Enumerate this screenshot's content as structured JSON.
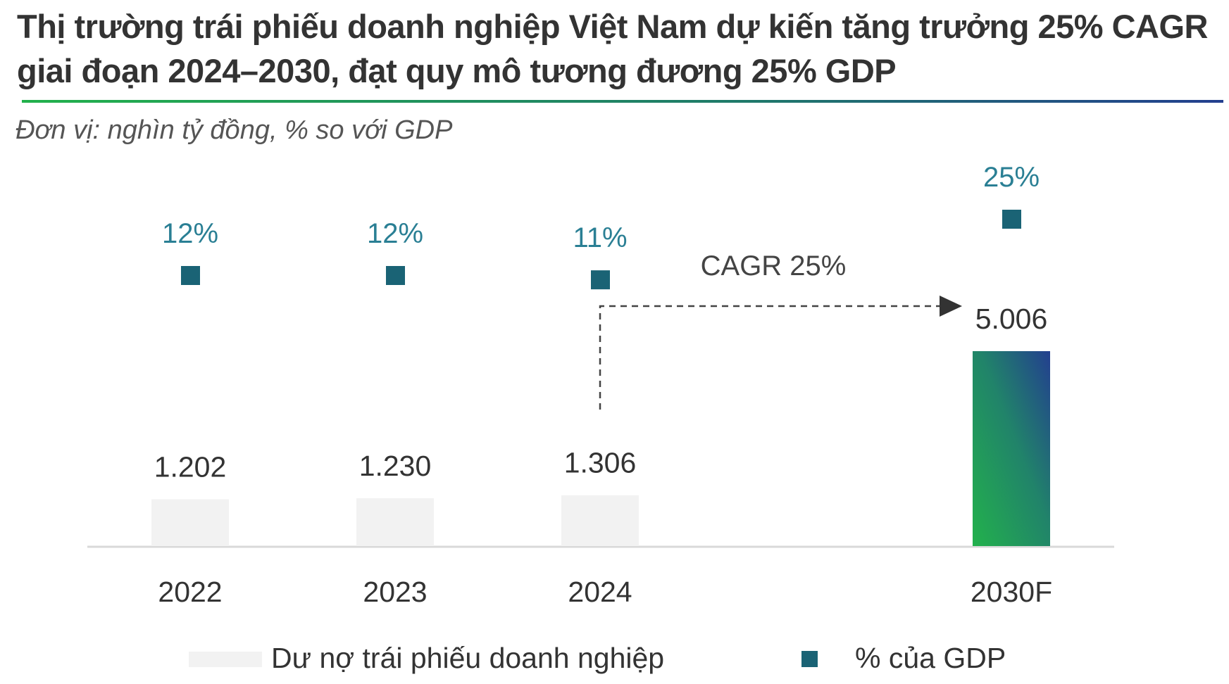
{
  "title": "Thị trường trái phiếu doanh nghiệp Việt Nam dự kiến tăng trưởng 25% CAGR giai đoạn 2024–2030, đạt quy mô tương đương 25% GDP",
  "subtitle": "Đơn vị: nghìn tỷ đồng, % so với GDP",
  "chart_data": {
    "type": "bar",
    "categories": [
      "2022",
      "2023",
      "2024",
      "2030F"
    ],
    "series": [
      {
        "name": "Dư nợ trái phiếu doanh nghiệp",
        "kind": "bar",
        "values": [
          1202,
          1230,
          1306,
          5006
        ],
        "labels": [
          "1.202",
          "1.230",
          "1.306",
          "5.006"
        ],
        "color": "#f2f2f2",
        "highlight_gradient": [
          "#22b14c",
          "#233f8f"
        ]
      },
      {
        "name": "% của GDP",
        "kind": "marker",
        "values": [
          12,
          12,
          11,
          25
        ],
        "labels": [
          "12%",
          "12%",
          "11%",
          "25%"
        ],
        "color": "#1a6375"
      }
    ],
    "annotation": "CAGR  25%",
    "grid": false,
    "legend": "bottom"
  }
}
